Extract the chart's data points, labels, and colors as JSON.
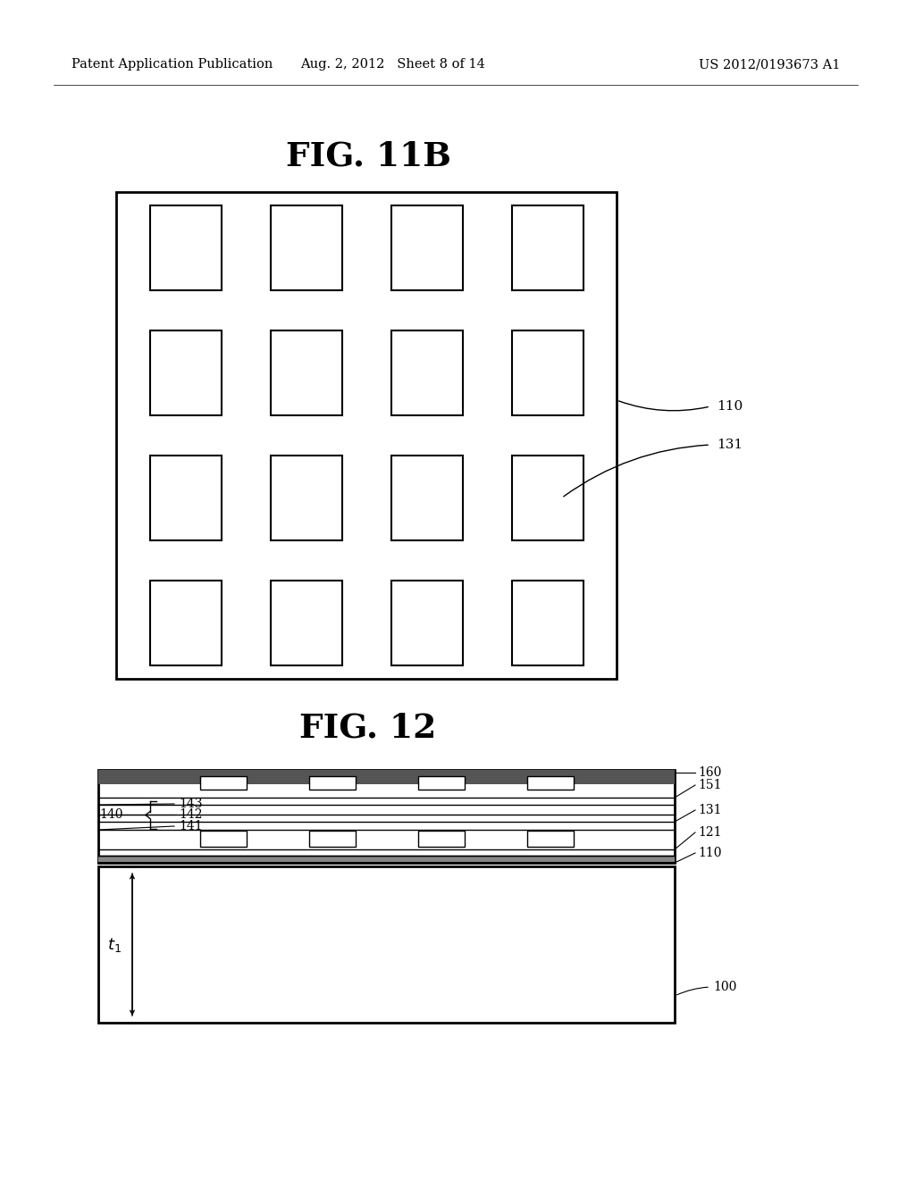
{
  "bg_color": "#ffffff",
  "header_left": "Patent Application Publication",
  "header_mid": "Aug. 2, 2012   Sheet 8 of 14",
  "header_right": "US 2012/0193673 A1",
  "fig11b_title": "FIG. 11B",
  "fig12_title": "FIG. 12",
  "grid_rows": 4,
  "grid_cols": 4,
  "label_110": "110",
  "label_131": "131",
  "label_140": "140",
  "label_141": "141",
  "label_142": "142",
  "label_143": "143",
  "label_100": "100",
  "label_110b": "110",
  "label_121": "121",
  "label_131b": "131",
  "label_151": "151",
  "label_160": "160",
  "label_t1": "t$_1$"
}
